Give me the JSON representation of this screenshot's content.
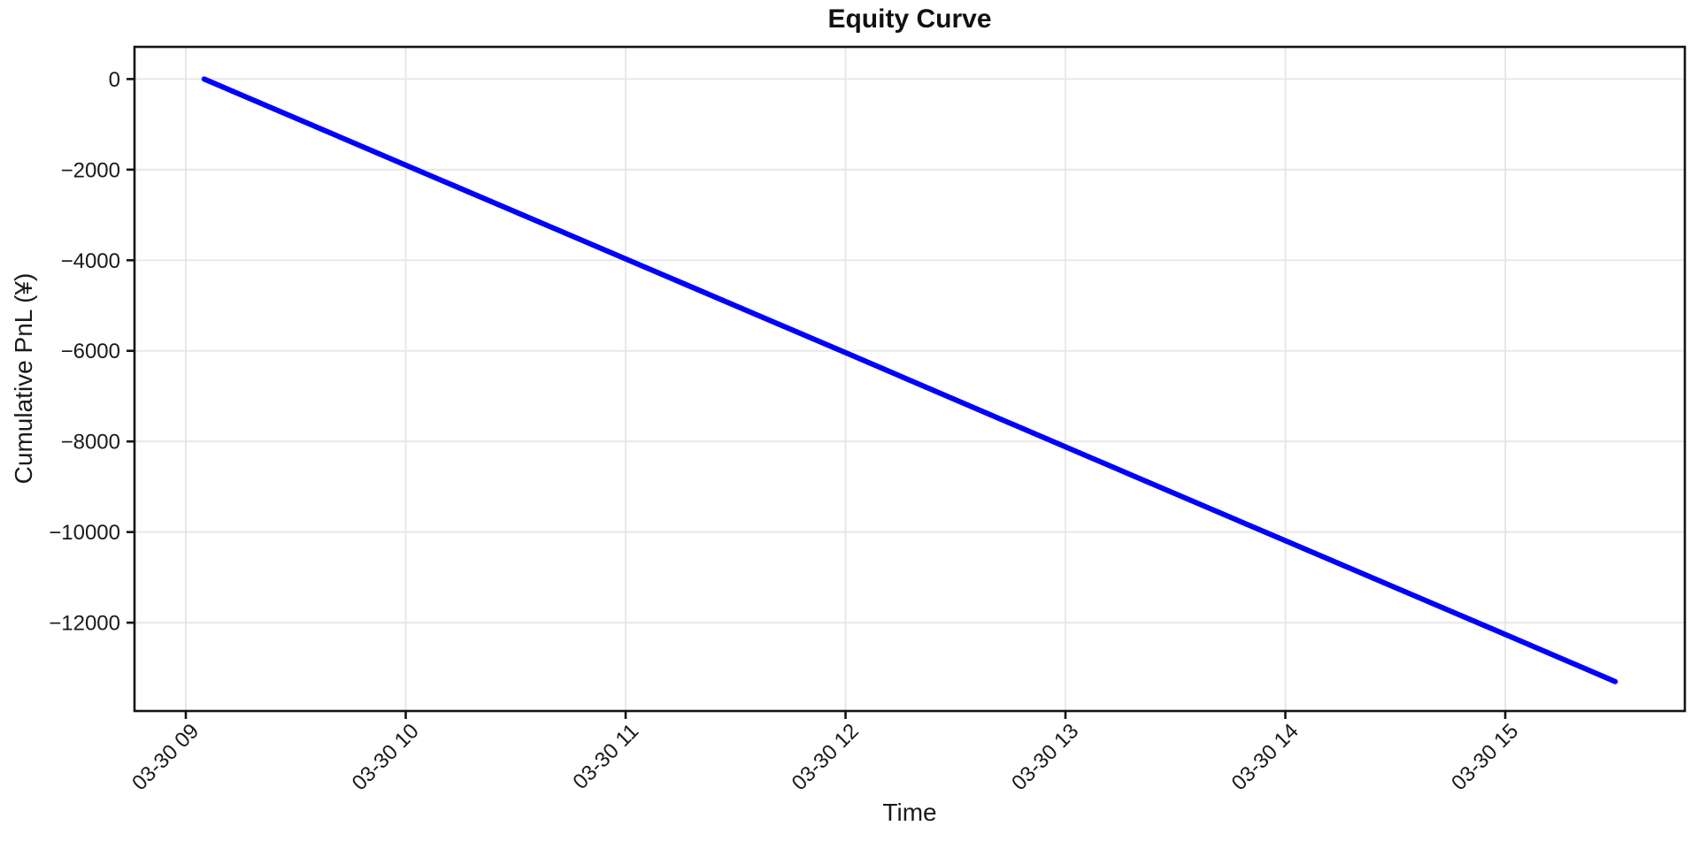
{
  "page": {
    "background": "#ffffff"
  },
  "chart_data": {
    "type": "line",
    "title": "Equity Curve",
    "xlabel": "Time",
    "ylabel": "Cumulative PnL (¥)",
    "date": "03-30",
    "grid": true,
    "legend": "none",
    "text_color": "#1a1a1a",
    "grid_color": "#e6e6e6",
    "spine_color": "#141414",
    "line_color": "#0000ff",
    "x_range": {
      "start": "08:46",
      "end": "15:49"
    },
    "y_range": {
      "min": -13950,
      "max": 710
    },
    "x_ticks": [
      {
        "label": "03-30 09",
        "time": "09:00"
      },
      {
        "label": "03-30 10",
        "time": "10:00"
      },
      {
        "label": "03-30 11",
        "time": "11:00"
      },
      {
        "label": "03-30 12",
        "time": "12:00"
      },
      {
        "label": "03-30 13",
        "time": "13:00"
      },
      {
        "label": "03-30 14",
        "time": "14:00"
      },
      {
        "label": "03-30 15",
        "time": "15:00"
      }
    ],
    "y_ticks": [
      {
        "label": "0",
        "value": 0
      },
      {
        "label": "−2000",
        "value": -2000
      },
      {
        "label": "−4000",
        "value": -4000
      },
      {
        "label": "−6000",
        "value": -6000
      },
      {
        "label": "−8000",
        "value": -8000
      },
      {
        "label": "−10000",
        "value": -10000
      },
      {
        "label": "−12000",
        "value": -12000
      }
    ],
    "series": [
      {
        "name": "Cumulative PnL",
        "color": "#0000ff",
        "points": [
          {
            "time": "09:05",
            "value": 0
          },
          {
            "time": "10:00",
            "value": -1900
          },
          {
            "time": "11:00",
            "value": -3970
          },
          {
            "time": "12:00",
            "value": -6040
          },
          {
            "time": "13:00",
            "value": -8120
          },
          {
            "time": "14:00",
            "value": -10190
          },
          {
            "time": "15:00",
            "value": -12260
          },
          {
            "time": "15:30",
            "value": -13300
          }
        ]
      }
    ]
  }
}
